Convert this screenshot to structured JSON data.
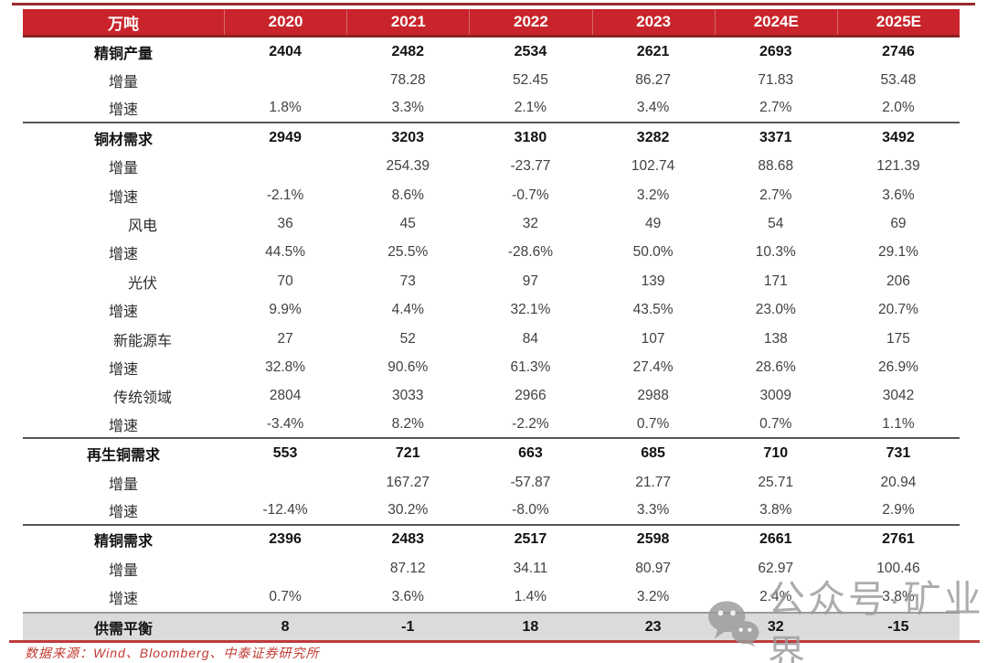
{
  "chart_data": {
    "type": "table",
    "unit_label": "万吨",
    "columns": [
      "2020",
      "2021",
      "2022",
      "2023",
      "2024E",
      "2025E"
    ],
    "rows": [
      {
        "label": "精铜产量",
        "indent": 0,
        "bold": true,
        "values": [
          "2404",
          "2482",
          "2534",
          "2621",
          "2693",
          "2746"
        ]
      },
      {
        "label": "增量",
        "indent": 1,
        "bold": false,
        "values": [
          "",
          "78.28",
          "52.45",
          "86.27",
          "71.83",
          "53.48"
        ]
      },
      {
        "label": "增速",
        "indent": 1,
        "bold": false,
        "divider_after": true,
        "values": [
          "1.8%",
          "3.3%",
          "2.1%",
          "3.4%",
          "2.7%",
          "2.0%"
        ]
      },
      {
        "label": "铜材需求",
        "indent": 0,
        "bold": true,
        "values": [
          "2949",
          "3203",
          "3180",
          "3282",
          "3371",
          "3492"
        ]
      },
      {
        "label": "增量",
        "indent": 1,
        "bold": false,
        "values": [
          "",
          "254.39",
          "-23.77",
          "102.74",
          "88.68",
          "121.39"
        ]
      },
      {
        "label": "增速",
        "indent": 1,
        "bold": false,
        "values": [
          "-2.1%",
          "8.6%",
          "-0.7%",
          "3.2%",
          "2.7%",
          "3.6%"
        ]
      },
      {
        "label": "风电",
        "indent": 2,
        "bold": false,
        "values": [
          "36",
          "45",
          "32",
          "49",
          "54",
          "69"
        ]
      },
      {
        "label": "增速",
        "indent": 1,
        "bold": false,
        "values": [
          "44.5%",
          "25.5%",
          "-28.6%",
          "50.0%",
          "10.3%",
          "29.1%"
        ]
      },
      {
        "label": "光伏",
        "indent": 2,
        "bold": false,
        "values": [
          "70",
          "73",
          "97",
          "139",
          "171",
          "206"
        ]
      },
      {
        "label": "增速",
        "indent": 1,
        "bold": false,
        "values": [
          "9.9%",
          "4.4%",
          "32.1%",
          "43.5%",
          "23.0%",
          "20.7%"
        ]
      },
      {
        "label": "新能源车",
        "indent": 2,
        "bold": false,
        "values": [
          "27",
          "52",
          "84",
          "107",
          "138",
          "175"
        ]
      },
      {
        "label": "增速",
        "indent": 1,
        "bold": false,
        "values": [
          "32.8%",
          "90.6%",
          "61.3%",
          "27.4%",
          "28.6%",
          "26.9%"
        ]
      },
      {
        "label": "传统领域",
        "indent": 2,
        "bold": false,
        "values": [
          "2804",
          "3033",
          "2966",
          "2988",
          "3009",
          "3042"
        ]
      },
      {
        "label": "增速",
        "indent": 1,
        "bold": false,
        "divider_after": true,
        "values": [
          "-3.4%",
          "8.2%",
          "-2.2%",
          "0.7%",
          "0.7%",
          "1.1%"
        ]
      },
      {
        "label": "再生铜需求",
        "indent": 0,
        "bold": true,
        "values": [
          "553",
          "721",
          "663",
          "685",
          "710",
          "731"
        ]
      },
      {
        "label": "增量",
        "indent": 1,
        "bold": false,
        "values": [
          "",
          "167.27",
          "-57.87",
          "21.77",
          "25.71",
          "20.94"
        ]
      },
      {
        "label": "增速",
        "indent": 1,
        "bold": false,
        "divider_after": true,
        "values": [
          "-12.4%",
          "30.2%",
          "-8.0%",
          "3.3%",
          "3.8%",
          "2.9%"
        ]
      },
      {
        "label": "精铜需求",
        "indent": 0,
        "bold": true,
        "values": [
          "2396",
          "2483",
          "2517",
          "2598",
          "2661",
          "2761"
        ]
      },
      {
        "label": "增量",
        "indent": 1,
        "bold": false,
        "values": [
          "",
          "87.12",
          "34.11",
          "80.97",
          "62.97",
          "100.46"
        ]
      },
      {
        "label": "增速",
        "indent": 1,
        "bold": false,
        "values": [
          "0.7%",
          "3.6%",
          "1.4%",
          "3.2%",
          "2.4%",
          "3.8%"
        ]
      },
      {
        "label": "供需平衡",
        "indent": 0,
        "bold": true,
        "highlight": true,
        "values": [
          "8",
          "-1",
          "18",
          "23",
          "32",
          "-15"
        ]
      }
    ]
  },
  "footer": {
    "source": "数据来源：Wind、Bloomberg、中泰证券研究所"
  },
  "watermark": {
    "text": "公众号·矿业界",
    "icon": "wechat-icon"
  },
  "colors": {
    "header_bg": "#C9242B",
    "header_border": "#8E2023",
    "top_rule": "#9C2B2E",
    "bottom_rule": "#BE3A3C",
    "section_divider": "#55565A",
    "highlight_row_bg": "#DBDBDB",
    "footer_text": "#C23A31",
    "watermark_gray": "#9B9B9B"
  }
}
